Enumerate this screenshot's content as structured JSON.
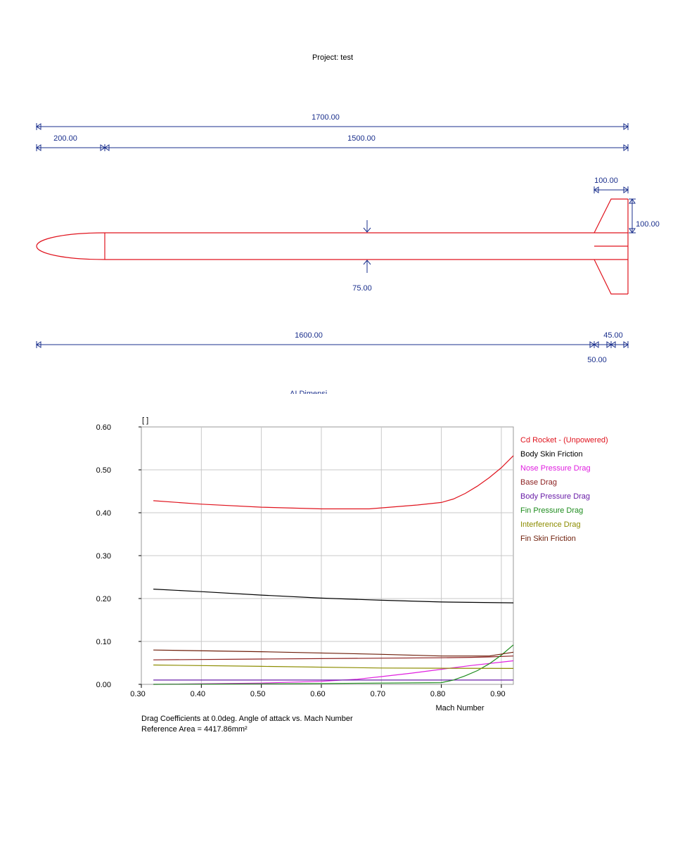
{
  "project": {
    "title": "Project: test"
  },
  "drawing": {
    "dims": {
      "overall": "1700.00",
      "nose": "200.00",
      "body": "1500.00",
      "fin_root": "100.00",
      "fin_span": "100.00",
      "diameter": "75.00",
      "fin_position": "1600.00",
      "fin_sweep": "50.00",
      "fin_tip": "45.00"
    },
    "partial_label": "ΛI Dimensi"
  },
  "chart_data": {
    "type": "line",
    "xlabel": "Mach Number",
    "ylabel": "[ ]",
    "xlim": [
      0.3,
      0.92
    ],
    "ylim": [
      0.0,
      0.6
    ],
    "xticks": [
      "0.30",
      "0.40",
      "0.50",
      "0.60",
      "0.70",
      "0.80",
      "0.90"
    ],
    "xtick_values": [
      0.3,
      0.4,
      0.5,
      0.6,
      0.7,
      0.8,
      0.9
    ],
    "yticks": [
      "0.00",
      "0.10",
      "0.20",
      "0.30",
      "0.40",
      "0.50",
      "0.60"
    ],
    "ytick_values": [
      0.0,
      0.1,
      0.2,
      0.3,
      0.4,
      0.5,
      0.6
    ],
    "grid": true,
    "legend_position": "right",
    "caption_line1": "Drag Coefficients at 0.0deg. Angle of attack vs. Mach Number",
    "caption_line2": "Reference Area =  4417.86mm²",
    "series": [
      {
        "name": "Cd Rocket - (Unpowered)",
        "color": "#e0141e",
        "x": [
          0.32,
          0.4,
          0.5,
          0.6,
          0.68,
          0.76,
          0.8,
          0.82,
          0.84,
          0.86,
          0.88,
          0.9,
          0.92
        ],
        "y": [
          0.428,
          0.42,
          0.413,
          0.409,
          0.409,
          0.418,
          0.424,
          0.432,
          0.445,
          0.462,
          0.482,
          0.505,
          0.533
        ]
      },
      {
        "name": "Body Skin Friction",
        "color": "#000000",
        "x": [
          0.32,
          0.4,
          0.5,
          0.6,
          0.7,
          0.8,
          0.92
        ],
        "y": [
          0.222,
          0.216,
          0.208,
          0.201,
          0.196,
          0.192,
          0.19
        ]
      },
      {
        "name": "Nose Pressure Drag",
        "color": "#e020e0",
        "x": [
          0.32,
          0.5,
          0.6,
          0.66,
          0.7,
          0.75,
          0.8,
          0.85,
          0.92
        ],
        "y": [
          0.0,
          0.003,
          0.007,
          0.012,
          0.018,
          0.026,
          0.035,
          0.044,
          0.055
        ]
      },
      {
        "name": "Base Drag",
        "color": "#8b1e1e",
        "x": [
          0.32,
          0.5,
          0.7,
          0.8,
          0.85,
          0.88,
          0.92
        ],
        "y": [
          0.057,
          0.059,
          0.061,
          0.062,
          0.063,
          0.064,
          0.066
        ]
      },
      {
        "name": "Body Pressure Drag",
        "color": "#6a1ea8",
        "x": [
          0.32,
          0.6,
          0.92
        ],
        "y": [
          0.01,
          0.01,
          0.01
        ]
      },
      {
        "name": "Fin Pressure Drag",
        "color": "#1e8c1e",
        "x": [
          0.32,
          0.6,
          0.8,
          0.82,
          0.84,
          0.86,
          0.88,
          0.9,
          0.92
        ],
        "y": [
          0.0,
          0.002,
          0.004,
          0.01,
          0.02,
          0.032,
          0.048,
          0.068,
          0.092
        ]
      },
      {
        "name": "Interference Drag",
        "color": "#8c8c00",
        "x": [
          0.32,
          0.5,
          0.7,
          0.92
        ],
        "y": [
          0.045,
          0.042,
          0.038,
          0.037
        ]
      },
      {
        "name": "Fin Skin Friction",
        "color": "#6e1e0a",
        "x": [
          0.32,
          0.5,
          0.7,
          0.8,
          0.88,
          0.92
        ],
        "y": [
          0.08,
          0.076,
          0.07,
          0.066,
          0.066,
          0.075
        ]
      }
    ]
  }
}
